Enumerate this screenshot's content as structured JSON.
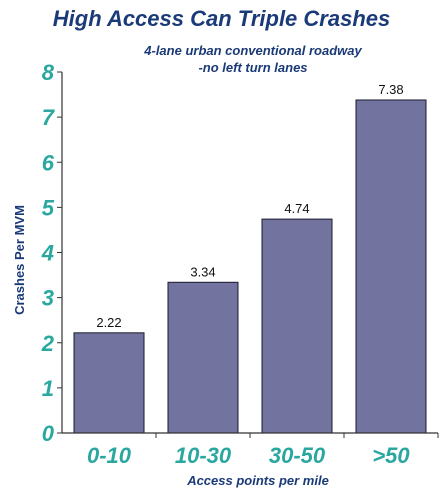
{
  "chart_data": {
    "type": "bar",
    "title": "High Access Can  Triple Crashes",
    "subtitle": [
      "4-lane urban conventional roadway",
      "-no left turn lanes"
    ],
    "categories": [
      "0-10",
      "10-30",
      "30-50",
      ">50"
    ],
    "values": [
      2.22,
      3.34,
      4.74,
      7.38
    ],
    "data_labels": [
      "2.22",
      "3.34",
      "4.74",
      "7.38"
    ],
    "xlabel": "Access points per mile",
    "ylabel": "Crashes Per MVM",
    "ylim": [
      0,
      8
    ],
    "yticks": [
      0,
      1,
      2,
      3,
      4,
      5,
      6,
      7,
      8
    ],
    "grid": false,
    "legend": "none",
    "colors": {
      "title": "#1a3a78",
      "subtitle": "#1a3a78",
      "tick_labels": "#2aa7a0",
      "axis_labels": "#1a3a78",
      "bar_fill": "#7373a0",
      "bar_stroke": "#1a1a2e",
      "axis": "#333333"
    }
  }
}
